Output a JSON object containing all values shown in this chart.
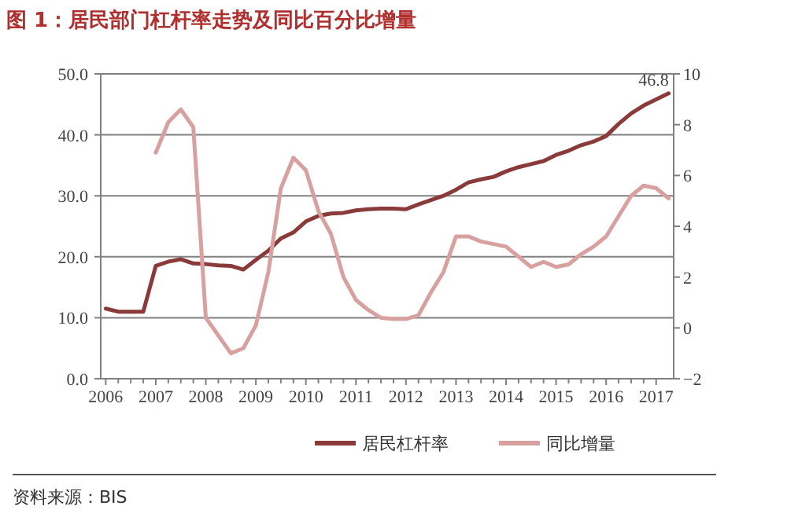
{
  "chart_data": {
    "type": "line",
    "title": "图 1：居民部门杠杆率走势及同比百分比增量",
    "xlim": [
      2005.9,
      2017.35
    ],
    "xticks": [
      2006,
      2007,
      2008,
      2009,
      2010,
      2011,
      2012,
      2013,
      2014,
      2015,
      2016,
      2017
    ],
    "ylim": [
      0,
      50
    ],
    "yticks": [
      {
        "value": 0,
        "label": "0.0"
      },
      {
        "value": 10,
        "label": "10.0"
      },
      {
        "value": 20,
        "label": "20.0"
      },
      {
        "value": 30,
        "label": "30.0"
      },
      {
        "value": 40,
        "label": "40.0"
      },
      {
        "value": 50,
        "label": "50.0"
      }
    ],
    "y2lim": [
      -2,
      10
    ],
    "y2ticks": [
      -2,
      0,
      2,
      4,
      6,
      8,
      10
    ],
    "grid": "y",
    "legend": "bottom",
    "marker": "none",
    "line_style": "solid",
    "annotations": [
      "资料来源：BIS"
    ],
    "series": [
      {
        "name": "居民杠杆率",
        "color": "#8b3a3a",
        "axis": "y",
        "x": [
          2006,
          2006.25,
          2006.5,
          2006.75,
          2007,
          2007.25,
          2007.5,
          2007.75,
          2008,
          2008.25,
          2008.5,
          2008.75,
          2009,
          2009.25,
          2009.5,
          2009.75,
          2010,
          2010.25,
          2010.5,
          2010.75,
          2011,
          2011.25,
          2011.5,
          2011.75,
          2012,
          2012.25,
          2012.5,
          2012.75,
          2013,
          2013.25,
          2013.5,
          2013.75,
          2014,
          2014.25,
          2014.5,
          2014.75,
          2015,
          2015.25,
          2015.5,
          2015.75,
          2016,
          2016.25,
          2016.5,
          2016.75,
          2017,
          2017.25
        ],
        "values": [
          11.5,
          11,
          11,
          11,
          18.5,
          19.2,
          19.6,
          18.9,
          18.8,
          18.6,
          18.5,
          17.9,
          19.5,
          21,
          23,
          24,
          25.8,
          26.7,
          27.1,
          27.2,
          27.6,
          27.8,
          27.9,
          27.9,
          27.8,
          28.6,
          29.3,
          30,
          31,
          32.2,
          32.7,
          33.1,
          34,
          34.7,
          35.2,
          35.7,
          36.7,
          37.4,
          38.3,
          38.9,
          39.8,
          41.8,
          43.5,
          44.8,
          45.8,
          46.8
        ],
        "value_labels": [
          null,
          null,
          null,
          null,
          null,
          null,
          null,
          null,
          null,
          null,
          null,
          null,
          null,
          null,
          null,
          null,
          null,
          null,
          null,
          null,
          null,
          null,
          null,
          null,
          null,
          null,
          null,
          null,
          null,
          null,
          null,
          null,
          null,
          null,
          null,
          null,
          null,
          null,
          null,
          null,
          null,
          null,
          null,
          null,
          null,
          "46.8"
        ]
      },
      {
        "name": "同比增量",
        "color": "#d9a0a0",
        "axis": "y2",
        "x": [
          2007,
          2007.25,
          2007.5,
          2007.75,
          2008,
          2008.25,
          2008.5,
          2008.75,
          2009,
          2009.25,
          2009.5,
          2009.75,
          2010,
          2010.25,
          2010.5,
          2010.75,
          2011,
          2011.25,
          2011.5,
          2011.75,
          2012,
          2012.25,
          2012.5,
          2012.75,
          2013,
          2013.25,
          2013.5,
          2013.75,
          2014,
          2014.25,
          2014.5,
          2014.75,
          2015,
          2015.25,
          2015.5,
          2015.75,
          2016,
          2016.25,
          2016.5,
          2016.75,
          2017,
          2017.25
        ],
        "values": [
          6.9,
          8.1,
          8.6,
          7.9,
          0.4,
          -0.3,
          -1.0,
          -0.8,
          0.1,
          2.2,
          5.5,
          6.7,
          6.2,
          4.6,
          3.7,
          2.0,
          1.1,
          0.7,
          0.4,
          0.35,
          0.35,
          0.5,
          1.4,
          2.2,
          3.6,
          3.6,
          3.4,
          3.3,
          3.2,
          2.8,
          2.4,
          2.6,
          2.4,
          2.5,
          2.9,
          3.2,
          3.6,
          4.4,
          5.2,
          5.6,
          5.5,
          5.1
        ]
      }
    ]
  }
}
